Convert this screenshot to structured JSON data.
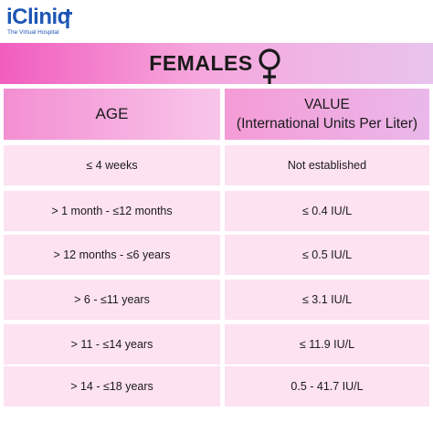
{
  "logo": {
    "wordmark": "iCliniq",
    "tagline": "The Virtual Hospital",
    "color": "#1d56b5"
  },
  "title": "FEMALES",
  "title_icon": "female-symbol-icon",
  "headers": {
    "age": "AGE",
    "value_line1": "VALUE",
    "value_line2": "(International Units Per Liter)"
  },
  "rows": [
    {
      "age": "≤ 4 weeks",
      "value": "Not established"
    },
    {
      "age": "> 1 month - ≤12 months",
      "value": "≤ 0.4 IU/L"
    },
    {
      "age": "> 12 months - ≤6 years",
      "value": "≤ 0.5 IU/L"
    },
    {
      "age": "> 6 - ≤11 years",
      "value": "≤ 3.1 IU/L"
    },
    {
      "age": "> 11 - ≤14 years",
      "value": "≤ 11.9 IU/L"
    },
    {
      "age": "> 14 - ≤18 years",
      "value": "0.5 - 41.7 IU/L"
    }
  ],
  "colors": {
    "title_band_start": "#f15dbe",
    "title_band_end": "#e8c4ec",
    "row_background": "#fde2f1"
  }
}
